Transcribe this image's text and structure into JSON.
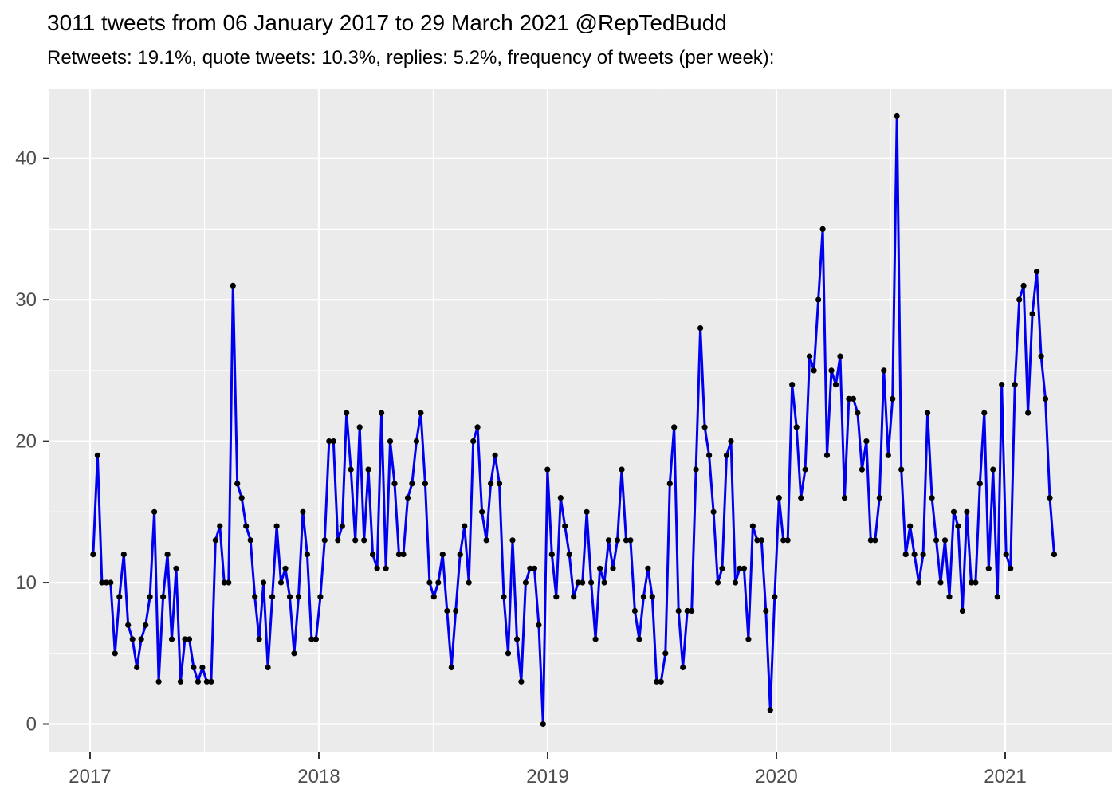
{
  "header": {
    "title": "3011 tweets from 06 January 2017 to 29 March 2021 @RepTedBudd",
    "subtitle": "Retweets: 19.1%, quote tweets: 10.3%, replies: 5.2%, frequency of tweets (per week):"
  },
  "chart_data": {
    "type": "line",
    "title": "3011 tweets from 06 January 2017 to 29 March 2021 @RepTedBudd",
    "subtitle": "Retweets: 19.1%, quote tweets: 10.3%, replies: 5.2%, frequency of tweets (per week):",
    "xlabel": "",
    "ylabel": "",
    "x_unit": "week",
    "x_start": "2017-01-06",
    "x_end": "2021-03-29",
    "x_tick_labels": [
      "2017",
      "2018",
      "2019",
      "2020",
      "2021"
    ],
    "y_tick_labels": [
      "0",
      "10",
      "20",
      "30",
      "40"
    ],
    "y_major": [
      0,
      10,
      20,
      30,
      40
    ],
    "y_minor": [
      5,
      15,
      25,
      35
    ],
    "ylim": [
      0,
      44
    ],
    "grid": true,
    "legend_position": "none",
    "series": [
      {
        "name": "tweets per week",
        "values": [
          12,
          19,
          10,
          10,
          10,
          5,
          9,
          12,
          7,
          6,
          4,
          6,
          7,
          9,
          15,
          3,
          9,
          12,
          6,
          11,
          3,
          6,
          6,
          4,
          3,
          4,
          3,
          3,
          13,
          14,
          10,
          10,
          31,
          17,
          16,
          14,
          13,
          9,
          6,
          10,
          4,
          9,
          14,
          10,
          11,
          9,
          5,
          9,
          15,
          12,
          6,
          6,
          9,
          13,
          20,
          20,
          13,
          14,
          22,
          18,
          13,
          21,
          13,
          18,
          12,
          11,
          22,
          11,
          20,
          17,
          12,
          12,
          16,
          17,
          20,
          22,
          17,
          10,
          9,
          10,
          12,
          8,
          4,
          8,
          12,
          14,
          10,
          20,
          21,
          15,
          13,
          17,
          19,
          17,
          9,
          5,
          13,
          6,
          3,
          10,
          11,
          11,
          7,
          0,
          18,
          12,
          9,
          16,
          14,
          12,
          9,
          10,
          10,
          15,
          10,
          6,
          11,
          10,
          13,
          11,
          13,
          18,
          13,
          13,
          8,
          6,
          9,
          11,
          9,
          3,
          3,
          5,
          17,
          21,
          8,
          4,
          8,
          8,
          18,
          28,
          21,
          19,
          15,
          10,
          11,
          19,
          20,
          10,
          11,
          11,
          6,
          14,
          13,
          13,
          8,
          1,
          9,
          16,
          13,
          13,
          24,
          21,
          16,
          18,
          26,
          25,
          30,
          35,
          19,
          25,
          24,
          26,
          16,
          23,
          23,
          22,
          18,
          20,
          13,
          13,
          16,
          25,
          19,
          23,
          43,
          18,
          12,
          14,
          12,
          10,
          12,
          22,
          16,
          13,
          10,
          13,
          9,
          15,
          14,
          8,
          15,
          10,
          10,
          17,
          22,
          11,
          18,
          9,
          24,
          12,
          11,
          24,
          30,
          31,
          22,
          29,
          32,
          26,
          23,
          16,
          12
        ]
      }
    ],
    "colors": {
      "line": "#0000EE",
      "point": "#000000",
      "panel_background": "#EBEBEB",
      "gridline": "#FFFFFF",
      "axis_text": "#4D4D4D",
      "tick_mark": "#333333",
      "title_text": "#000000"
    }
  }
}
